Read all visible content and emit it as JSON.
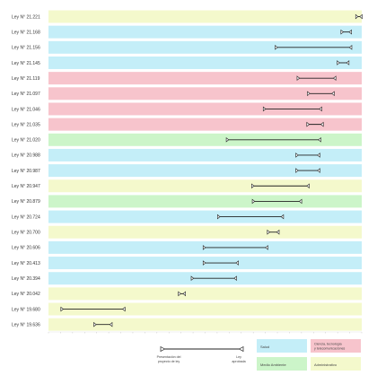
{
  "chart_data": {
    "type": "range",
    "x_axis": {
      "min": 0,
      "max": 100
    },
    "categories": [
      {
        "label": "Ley N° 21.221",
        "area": "Administrativo",
        "start": 98.2,
        "end": 100
      },
      {
        "label": "Ley N° 21.168",
        "area": "Salud",
        "start": 93.5,
        "end": 96.6
      },
      {
        "label": "Ley N° 21.156",
        "area": "Salud",
        "start": 72.5,
        "end": 96.7
      },
      {
        "label": "Ley N° 21.145",
        "area": "Salud",
        "start": 92.3,
        "end": 95.8
      },
      {
        "label": "Ley N° 21.119",
        "area": "Ciencia, tecnología y telecomunicaciones",
        "start": 79.5,
        "end": 91.6
      },
      {
        "label": "Ley N° 21.097",
        "area": "Ciencia, tecnología y telecomunicaciones",
        "start": 82.8,
        "end": 91.1
      },
      {
        "label": "Ley N° 21.046",
        "area": "Ciencia, tecnología y telecomunicaciones",
        "start": 68.7,
        "end": 87.1
      },
      {
        "label": "Ley N° 21.035",
        "area": "Ciencia, tecnología y telecomunicaciones",
        "start": 82.6,
        "end": 87.6
      },
      {
        "label": "Ley N° 21.020",
        "area": "Medio Ambiente",
        "start": 56.9,
        "end": 86.8
      },
      {
        "label": "Ley N° 20.988",
        "area": "Salud",
        "start": 79.1,
        "end": 86.5
      },
      {
        "label": "Ley N° 20.987",
        "area": "Salud",
        "start": 79.1,
        "end": 86.5
      },
      {
        "label": "Ley N° 20.947",
        "area": "Administrativo",
        "start": 65.0,
        "end": 83.1
      },
      {
        "label": "Ley N° 20.879",
        "area": "Medio Ambiente",
        "start": 65.2,
        "end": 80.7
      },
      {
        "label": "Ley N° 20.724",
        "area": "Salud",
        "start": 54.1,
        "end": 74.9
      },
      {
        "label": "Ley N° 20.700",
        "area": "Administrativo",
        "start": 70.0,
        "end": 73.5
      },
      {
        "label": "Ley N° 20.606",
        "area": "Salud",
        "start": 49.5,
        "end": 69.9
      },
      {
        "label": "Ley N° 20.413",
        "area": "Salud",
        "start": 49.5,
        "end": 60.5
      },
      {
        "label": "Ley N° 20.394",
        "area": "Salud",
        "start": 45.7,
        "end": 59.9
      },
      {
        "label": "Ley N° 20.042",
        "area": "Administrativo",
        "start": 41.6,
        "end": 43.6
      },
      {
        "label": "Ley N° 19.680",
        "area": "Administrativo",
        "start": 4.1,
        "end": 24.3
      },
      {
        "label": "Ley N° 19.636",
        "area": "Administrativo",
        "start": 14.6,
        "end": 20.2
      }
    ],
    "legend": {
      "start_label_line1": "Presentación del",
      "start_label_line2": "proyecto de ley",
      "end_label_line1": "Ley",
      "end_label_line2": "aprobada",
      "areas": [
        {
          "name": "Salud",
          "color": "#c4eef8"
        },
        {
          "name": "Ciencia, tecnología y telecomunicaciones",
          "line1": "Ciencia, tecnología",
          "line2": "y telecomunicaciones",
          "color": "#f7c4cc"
        },
        {
          "name": "Medio Ambiente",
          "color": "#ccf5c9"
        },
        {
          "name": "Administrativo",
          "color": "#f4f9cc"
        }
      ]
    }
  }
}
